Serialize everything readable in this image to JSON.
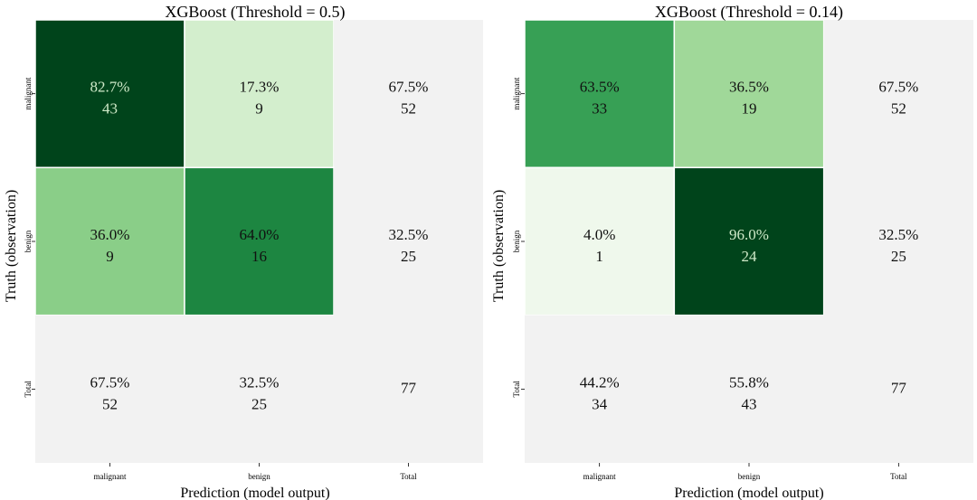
{
  "chart_data": [
    {
      "type": "heatmap",
      "title": "XGBoost (Threshold = 0.5)",
      "xlabel": "Prediction (model output)",
      "ylabel": "Truth (observation)",
      "x_categories": [
        "malignant",
        "benign",
        "Total"
      ],
      "y_categories": [
        "malignant",
        "benign",
        "Total"
      ],
      "cells": [
        [
          {
            "pct": "82.7%",
            "count": "43",
            "value": 82.7,
            "color": "#00441b"
          },
          {
            "pct": "17.3%",
            "count": "9",
            "value": 17.3,
            "color": "#d3eecd"
          },
          {
            "pct": "67.5%",
            "count": "52",
            "value": null,
            "color": "#f2f2f2"
          }
        ],
        [
          {
            "pct": "36.0%",
            "count": "9",
            "value": 36.0,
            "color": "#8ace88"
          },
          {
            "pct": "64.0%",
            "count": "16",
            "value": 64.0,
            "color": "#1d8641"
          },
          {
            "pct": "32.5%",
            "count": "25",
            "value": null,
            "color": "#f2f2f2"
          }
        ],
        [
          {
            "pct": "67.5%",
            "count": "52",
            "value": null,
            "color": "#f2f2f2"
          },
          {
            "pct": "32.5%",
            "count": "25",
            "value": null,
            "color": "#f2f2f2"
          },
          {
            "pct": "",
            "count": "77",
            "value": null,
            "color": "#f2f2f2"
          }
        ]
      ]
    },
    {
      "type": "heatmap",
      "title": "XGBoost (Threshold = 0.14)",
      "xlabel": "Prediction (model output)",
      "ylabel": "Truth (observation)",
      "x_categories": [
        "malignant",
        "benign",
        "Total"
      ],
      "y_categories": [
        "malignant",
        "benign",
        "Total"
      ],
      "cells": [
        [
          {
            "pct": "63.5%",
            "count": "33",
            "value": 63.5,
            "color": "#37a055"
          },
          {
            "pct": "36.5%",
            "count": "19",
            "value": 36.5,
            "color": "#a0d899"
          },
          {
            "pct": "67.5%",
            "count": "52",
            "value": null,
            "color": "#f2f2f2"
          }
        ],
        [
          {
            "pct": "4.0%",
            "count": "1",
            "value": 4.0,
            "color": "#eff8ec"
          },
          {
            "pct": "96.0%",
            "count": "24",
            "value": 96.0,
            "color": "#00441b"
          },
          {
            "pct": "32.5%",
            "count": "25",
            "value": null,
            "color": "#f2f2f2"
          }
        ],
        [
          {
            "pct": "44.2%",
            "count": "34",
            "value": null,
            "color": "#f2f2f2"
          },
          {
            "pct": "55.8%",
            "count": "43",
            "value": null,
            "color": "#f2f2f2"
          },
          {
            "pct": "",
            "count": "77",
            "value": null,
            "color": "#f2f2f2"
          }
        ]
      ]
    }
  ]
}
